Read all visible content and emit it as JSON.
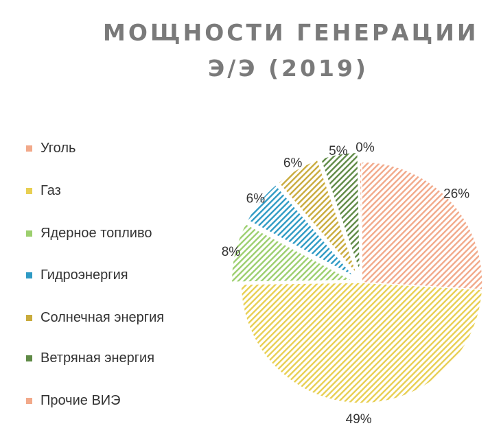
{
  "chart_data": {
    "type": "pie",
    "title_lines": [
      "МОЩНОСТИ ГЕНЕРАЦИИ",
      "Э/Э  (2019)"
    ],
    "legend_position": "left",
    "slices": [
      {
        "name": "Уголь",
        "value": 26,
        "label": "26%",
        "color": "#f2a98a"
      },
      {
        "name": "Газ",
        "value": 49,
        "label": "49%",
        "color": "#e8cf52"
      },
      {
        "name": "Ядерное топливо",
        "value": 8,
        "label": "8%",
        "color": "#9ccf6e"
      },
      {
        "name": "Гидроэнергия",
        "value": 6,
        "label": "6%",
        "color": "#2e9ac4"
      },
      {
        "name": "Солнечная энергия",
        "value": 6,
        "label": "6%",
        "color": "#c9ab3c"
      },
      {
        "name": "Ветряная энергия",
        "value": 5,
        "label": "5%",
        "color": "#5f8a46"
      },
      {
        "name": "Прочие ВИЭ",
        "value": 0.3,
        "label": "0%",
        "color": "#f2a98a"
      }
    ]
  }
}
